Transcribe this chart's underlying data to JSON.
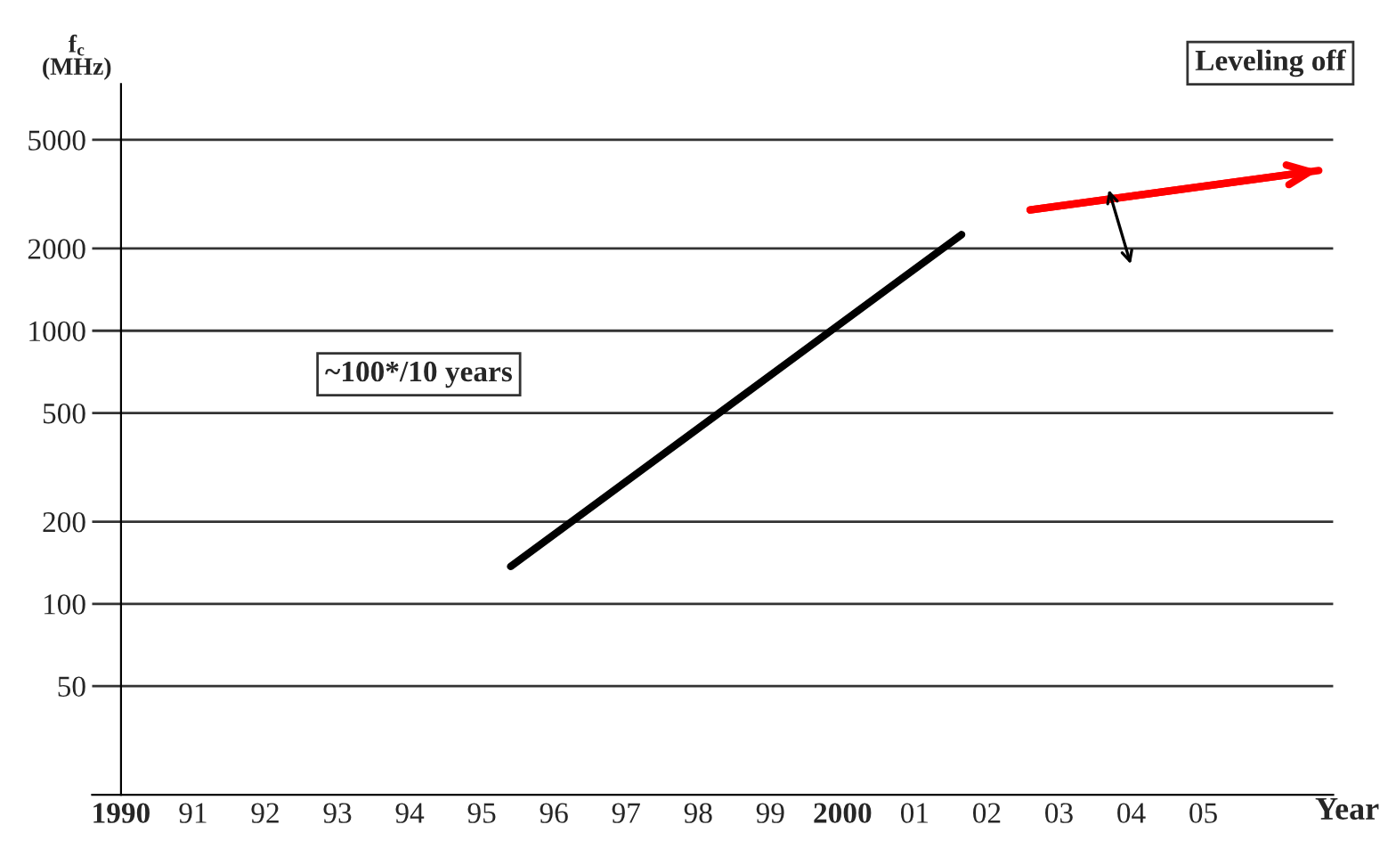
{
  "chart_data": {
    "type": "line",
    "ylabel": "f$_{c}$\n(MHz)",
    "xlabel": "Year",
    "annotations": [
      "Leveling off",
      "~100*/10 years"
    ],
    "series": [
      {
        "color": "#000000",
        "x": [
          1995.4,
          2001.65
        ],
        "values": [
          137,
          2250
        ]
      },
      {
        "color": "#ff0000",
        "x": [
          2002.6,
          2006.6
        ],
        "values": [
          2770,
          3860
        ]
      }
    ],
    "log": "y",
    "xlim": [
      1989.6,
      2006.8
    ],
    "ylim": [
      20,
      8000
    ],
    "xticks": [
      {
        "value": 1990,
        "label": "1990"
      },
      {
        "value": 1991,
        "label": "91"
      },
      {
        "value": 1992,
        "label": "92"
      },
      {
        "value": 1993,
        "label": "93"
      },
      {
        "value": 1994,
        "label": "94"
      },
      {
        "value": 1995,
        "label": "95"
      },
      {
        "value": 1996,
        "label": "96"
      },
      {
        "value": 1997,
        "label": "97"
      },
      {
        "value": 1998,
        "label": "98"
      },
      {
        "value": 1999,
        "label": "99"
      },
      {
        "value": 2000,
        "label": "2000"
      },
      {
        "value": 2001,
        "label": "01"
      },
      {
        "value": 2002,
        "label": "02"
      },
      {
        "value": 2003,
        "label": "03"
      },
      {
        "value": 2004,
        "label": "04"
      },
      {
        "value": 2005,
        "label": "05"
      }
    ],
    "yticks": [
      50,
      100,
      200,
      500,
      1000,
      2000,
      5000
    ],
    "grid": "y",
    "legend": false,
    "marker": "none",
    "line_style": "solid"
  }
}
